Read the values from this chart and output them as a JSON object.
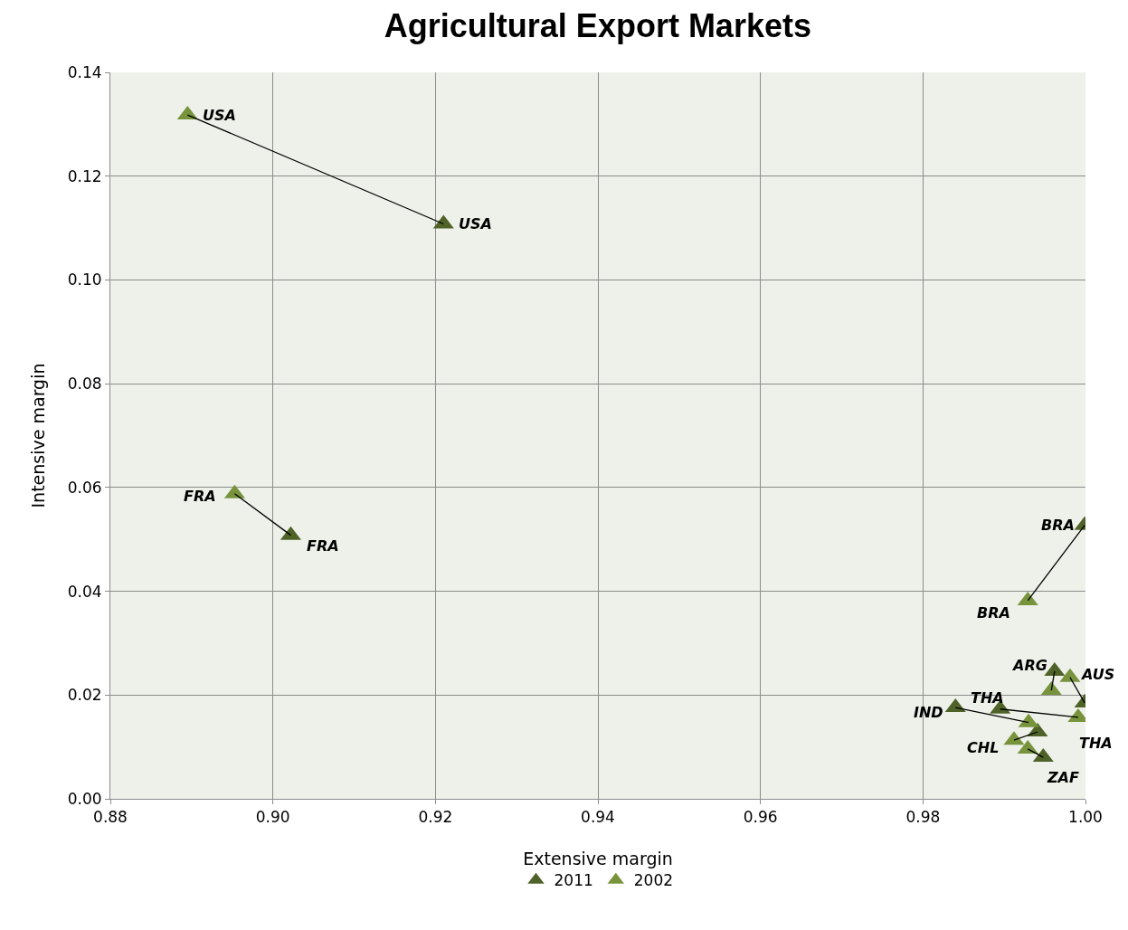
{
  "chart_data": {
    "type": "scatter",
    "title": "Agricultural Export Markets",
    "xlabel": "Extensive margin",
    "ylabel": "Intensive margin",
    "xlim": [
      0.88,
      1.0
    ],
    "xticks": [
      {
        "value": 0.88,
        "label": "0.88"
      },
      {
        "value": 0.9,
        "label": "0.90"
      },
      {
        "value": 0.92,
        "label": "0.92"
      },
      {
        "value": 0.94,
        "label": "0.94"
      },
      {
        "value": 0.96,
        "label": "0.96"
      },
      {
        "value": 0.98,
        "label": "0.98"
      },
      {
        "value": 1.0,
        "label": "1.00"
      }
    ],
    "ylim": [
      0,
      0.14
    ],
    "yticks": [
      {
        "value": 0,
        "label": "0.00"
      },
      {
        "value": 0.02,
        "label": "0.02"
      },
      {
        "value": 0.04,
        "label": "0.04"
      },
      {
        "value": 0.06,
        "label": "0.06"
      },
      {
        "value": 0.08,
        "label": "0.08"
      },
      {
        "value": 0.1,
        "label": "0.10"
      },
      {
        "value": 0.12,
        "label": "0.12"
      },
      {
        "value": 0.14,
        "label": "0.14"
      }
    ],
    "grid": true,
    "legend": "bottom",
    "marker": "triangle",
    "series": [
      {
        "type": "line",
        "marker": "none",
        "color": "#000000",
        "x": [
          0.8895,
          0.921
        ],
        "values": [
          0.1318,
          0.1108
        ]
      },
      {
        "type": "line",
        "marker": "none",
        "color": "#000000",
        "x": [
          0.8953,
          0.9022
        ],
        "values": [
          0.0588,
          0.0508
        ]
      },
      {
        "type": "line",
        "marker": "none",
        "color": "#000000",
        "x": [
          0.9929,
          0.9999
        ],
        "values": [
          0.0382,
          0.0527
        ]
      },
      {
        "type": "line",
        "marker": "none",
        "color": "#000000",
        "x": [
          0.9958,
          0.9962
        ],
        "values": [
          0.0209,
          0.0246
        ]
      },
      {
        "type": "line",
        "marker": "none",
        "color": "#000000",
        "x": [
          0.9981,
          0.9999
        ],
        "values": [
          0.0234,
          0.0185
        ]
      },
      {
        "type": "line",
        "marker": "none",
        "color": "#000000",
        "x": [
          0.993,
          0.984
        ],
        "values": [
          0.0147,
          0.0176
        ]
      },
      {
        "type": "line",
        "marker": "none",
        "color": "#000000",
        "x": [
          0.9991,
          0.9895
        ],
        "values": [
          0.0157,
          0.0173
        ]
      },
      {
        "type": "line",
        "marker": "none",
        "color": "#000000",
        "x": [
          0.9912,
          0.9941
        ],
        "values": [
          0.0113,
          0.0129
        ]
      },
      {
        "type": "line",
        "marker": "none",
        "color": "#000000",
        "x": [
          0.9929,
          0.9948
        ],
        "values": [
          0.0096,
          0.008
        ]
      },
      {
        "name": "2011",
        "color": "#4f6228",
        "x": [
          0.921,
          0.9022,
          0.9999,
          0.9962,
          0.9999,
          0.984,
          0.9895,
          0.9941,
          0.9948
        ],
        "values": [
          0.1108,
          0.0508,
          0.0527,
          0.0246,
          0.0185,
          0.0176,
          0.0173,
          0.0129,
          0.008
        ]
      },
      {
        "name": "2002",
        "color": "#77933c",
        "x": [
          0.8895,
          0.8953,
          0.9929,
          0.9958,
          0.9981,
          0.993,
          0.9991,
          0.9912,
          0.9929
        ],
        "values": [
          0.1318,
          0.0588,
          0.0382,
          0.0209,
          0.0234,
          0.0147,
          0.0157,
          0.0113,
          0.0096
        ]
      }
    ],
    "annotations": [
      {
        "text": "USA",
        "x": 0.8895,
        "y": 0.1318
      },
      {
        "text": "USA",
        "x": 0.921,
        "y": 0.1108
      },
      {
        "text": "FRA",
        "x": 0.8953,
        "y": 0.0588
      },
      {
        "text": "FRA",
        "x": 0.9022,
        "y": 0.0508
      },
      {
        "text": "BRA",
        "x": 0.9999,
        "y": 0.0527
      },
      {
        "text": "BRA",
        "x": 0.9929,
        "y": 0.0382
      },
      {
        "text": "ARG",
        "x": 0.9962,
        "y": 0.0246
      },
      {
        "text": "AUS",
        "x": 0.9981,
        "y": 0.0234
      },
      {
        "text": "THA",
        "x": 0.9895,
        "y": 0.0173
      },
      {
        "text": "IND",
        "x": 0.984,
        "y": 0.0176
      },
      {
        "text": "THA",
        "x": 0.9991,
        "y": 0.0157
      },
      {
        "text": "CHL",
        "x": 0.9912,
        "y": 0.0113
      },
      {
        "text": "ZAF",
        "x": 0.9948,
        "y": 0.008
      }
    ]
  }
}
